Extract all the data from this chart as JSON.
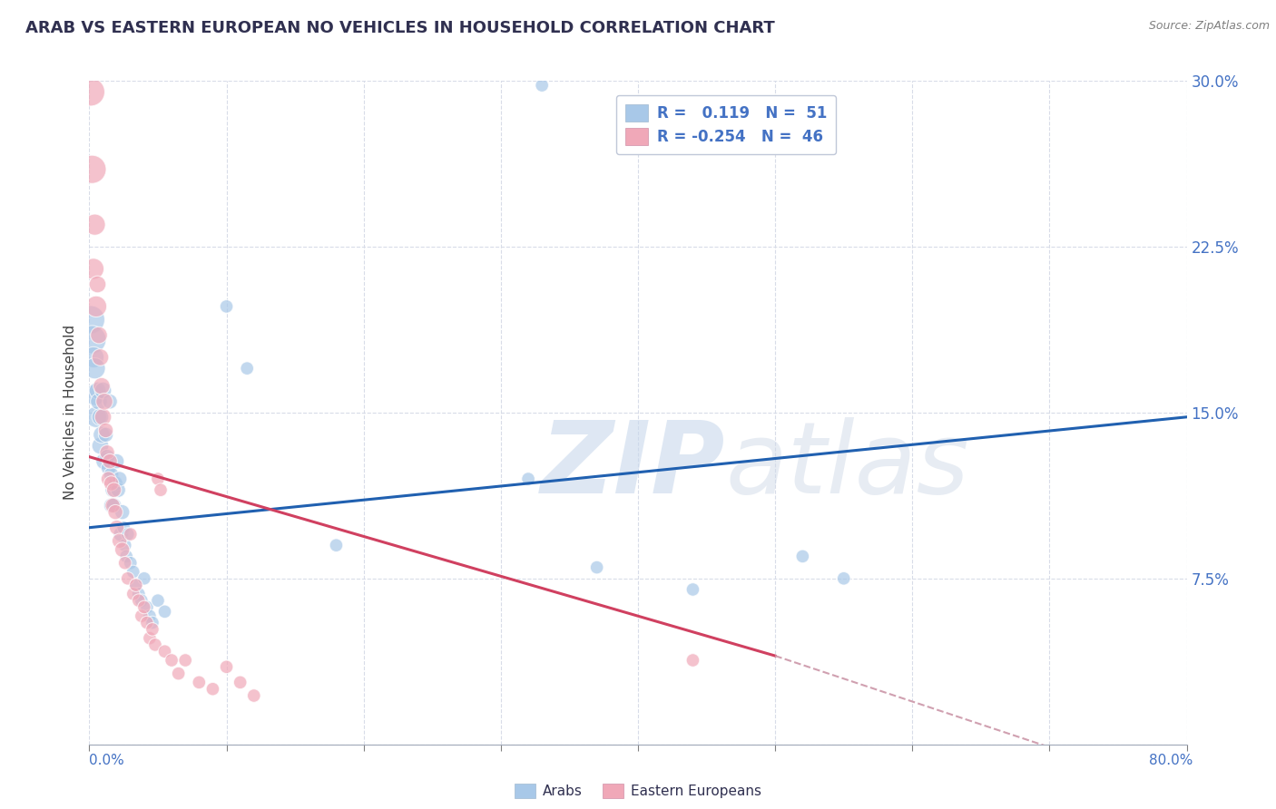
{
  "title": "ARAB VS EASTERN EUROPEAN NO VEHICLES IN HOUSEHOLD CORRELATION CHART",
  "source": "Source: ZipAtlas.com",
  "ylabel": "No Vehicles in Household",
  "xlim": [
    0.0,
    0.8
  ],
  "ylim": [
    0.0,
    0.3
  ],
  "watermark_zip": "ZIP",
  "watermark_atlas": "atlas",
  "legend_arab_R": "0.119",
  "legend_arab_N": "51",
  "legend_eastern_R": "-0.254",
  "legend_eastern_N": "46",
  "arab_color": "#A8C8E8",
  "eastern_color": "#F0A8B8",
  "arab_line_color": "#2060B0",
  "eastern_line_color": "#D04060",
  "eastern_line_dash_color": "#D0A0B0",
  "grid_color": "#D8DCE8",
  "ytick_color": "#4472C4",
  "arab_points": [
    [
      0.001,
      0.192
    ],
    [
      0.002,
      0.183
    ],
    [
      0.003,
      0.175
    ],
    [
      0.004,
      0.17
    ],
    [
      0.004,
      0.158
    ],
    [
      0.005,
      0.148
    ],
    [
      0.006,
      0.16
    ],
    [
      0.007,
      0.155
    ],
    [
      0.008,
      0.135
    ],
    [
      0.008,
      0.148
    ],
    [
      0.009,
      0.14
    ],
    [
      0.01,
      0.16
    ],
    [
      0.011,
      0.128
    ],
    [
      0.012,
      0.14
    ],
    [
      0.013,
      0.13
    ],
    [
      0.014,
      0.125
    ],
    [
      0.015,
      0.155
    ],
    [
      0.016,
      0.122
    ],
    [
      0.016,
      0.108
    ],
    [
      0.017,
      0.115
    ],
    [
      0.018,
      0.108
    ],
    [
      0.019,
      0.118
    ],
    [
      0.02,
      0.128
    ],
    [
      0.021,
      0.115
    ],
    [
      0.022,
      0.12
    ],
    [
      0.023,
      0.095
    ],
    [
      0.024,
      0.105
    ],
    [
      0.025,
      0.098
    ],
    [
      0.026,
      0.09
    ],
    [
      0.027,
      0.085
    ],
    [
      0.028,
      0.095
    ],
    [
      0.03,
      0.082
    ],
    [
      0.032,
      0.078
    ],
    [
      0.034,
      0.072
    ],
    [
      0.036,
      0.068
    ],
    [
      0.038,
      0.065
    ],
    [
      0.04,
      0.075
    ],
    [
      0.042,
      0.062
    ],
    [
      0.044,
      0.058
    ],
    [
      0.046,
      0.055
    ],
    [
      0.05,
      0.065
    ],
    [
      0.055,
      0.06
    ],
    [
      0.1,
      0.198
    ],
    [
      0.115,
      0.17
    ],
    [
      0.18,
      0.09
    ],
    [
      0.32,
      0.12
    ],
    [
      0.37,
      0.08
    ],
    [
      0.44,
      0.07
    ],
    [
      0.52,
      0.085
    ],
    [
      0.55,
      0.075
    ],
    [
      0.33,
      0.298
    ]
  ],
  "eastern_points": [
    [
      0.001,
      0.295
    ],
    [
      0.002,
      0.26
    ],
    [
      0.003,
      0.215
    ],
    [
      0.004,
      0.235
    ],
    [
      0.005,
      0.198
    ],
    [
      0.006,
      0.208
    ],
    [
      0.007,
      0.185
    ],
    [
      0.008,
      0.175
    ],
    [
      0.009,
      0.162
    ],
    [
      0.01,
      0.148
    ],
    [
      0.011,
      0.155
    ],
    [
      0.012,
      0.142
    ],
    [
      0.013,
      0.132
    ],
    [
      0.014,
      0.12
    ],
    [
      0.015,
      0.128
    ],
    [
      0.016,
      0.118
    ],
    [
      0.017,
      0.108
    ],
    [
      0.018,
      0.115
    ],
    [
      0.019,
      0.105
    ],
    [
      0.02,
      0.098
    ],
    [
      0.022,
      0.092
    ],
    [
      0.024,
      0.088
    ],
    [
      0.026,
      0.082
    ],
    [
      0.028,
      0.075
    ],
    [
      0.03,
      0.095
    ],
    [
      0.032,
      0.068
    ],
    [
      0.034,
      0.072
    ],
    [
      0.036,
      0.065
    ],
    [
      0.038,
      0.058
    ],
    [
      0.04,
      0.062
    ],
    [
      0.042,
      0.055
    ],
    [
      0.044,
      0.048
    ],
    [
      0.046,
      0.052
    ],
    [
      0.048,
      0.045
    ],
    [
      0.05,
      0.12
    ],
    [
      0.052,
      0.115
    ],
    [
      0.055,
      0.042
    ],
    [
      0.06,
      0.038
    ],
    [
      0.065,
      0.032
    ],
    [
      0.07,
      0.038
    ],
    [
      0.08,
      0.028
    ],
    [
      0.09,
      0.025
    ],
    [
      0.1,
      0.035
    ],
    [
      0.11,
      0.028
    ],
    [
      0.12,
      0.022
    ],
    [
      0.44,
      0.038
    ]
  ],
  "arab_line": [
    0.0,
    0.8,
    0.098,
    0.148
  ],
  "eastern_line_solid": [
    0.0,
    0.5,
    0.13,
    0.04
  ],
  "eastern_line_dash": [
    0.5,
    0.8,
    0.04,
    -0.022
  ],
  "yticks": [
    0.0,
    0.075,
    0.15,
    0.225,
    0.3
  ],
  "ytick_labels": [
    "",
    "7.5%",
    "15.0%",
    "22.5%",
    "30.0%"
  ]
}
